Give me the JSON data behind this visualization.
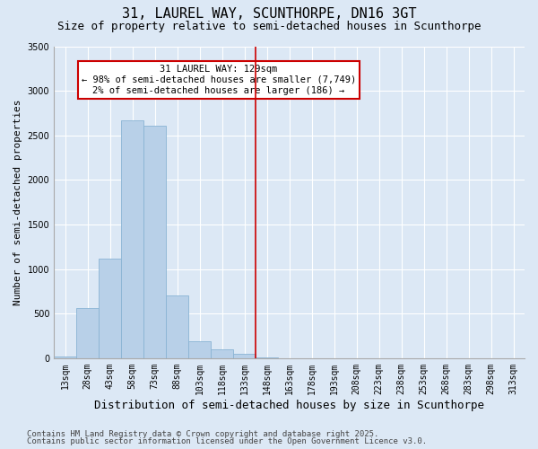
{
  "title": "31, LAUREL WAY, SCUNTHORPE, DN16 3GT",
  "subtitle": "Size of property relative to semi-detached houses in Scunthorpe",
  "xlabel": "Distribution of semi-detached houses by size in Scunthorpe",
  "ylabel": "Number of semi-detached properties",
  "categories": [
    "13sqm",
    "28sqm",
    "43sqm",
    "58sqm",
    "73sqm",
    "88sqm",
    "103sqm",
    "118sqm",
    "133sqm",
    "148sqm",
    "163sqm",
    "178sqm",
    "193sqm",
    "208sqm",
    "223sqm",
    "238sqm",
    "253sqm",
    "268sqm",
    "283sqm",
    "298sqm",
    "313sqm"
  ],
  "values": [
    20,
    560,
    1120,
    2670,
    2610,
    700,
    190,
    100,
    50,
    5,
    0,
    0,
    0,
    0,
    0,
    0,
    0,
    0,
    0,
    0,
    0
  ],
  "bar_color": "#b8d0e8",
  "bar_edge_color": "#8ab4d4",
  "annotation_line": "31 LAUREL WAY: 129sqm",
  "annotation_smaller": "← 98% of semi-detached houses are smaller (7,749)",
  "annotation_larger": "2% of semi-detached houses are larger (186) →",
  "annotation_box_color": "#ffffff",
  "annotation_box_edge_color": "#cc0000",
  "line_color": "#cc0000",
  "ylim": [
    0,
    3500
  ],
  "yticks": [
    0,
    500,
    1000,
    1500,
    2000,
    2500,
    3000,
    3500
  ],
  "background_color": "#dce8f5",
  "plot_bg_color": "#dce8f5",
  "grid_color": "#ffffff",
  "footer1": "Contains HM Land Registry data © Crown copyright and database right 2025.",
  "footer2": "Contains public sector information licensed under the Open Government Licence v3.0.",
  "title_fontsize": 11,
  "subtitle_fontsize": 9,
  "xlabel_fontsize": 9,
  "ylabel_fontsize": 8,
  "tick_fontsize": 7,
  "footer_fontsize": 6.5,
  "annot_fontsize": 7.5
}
